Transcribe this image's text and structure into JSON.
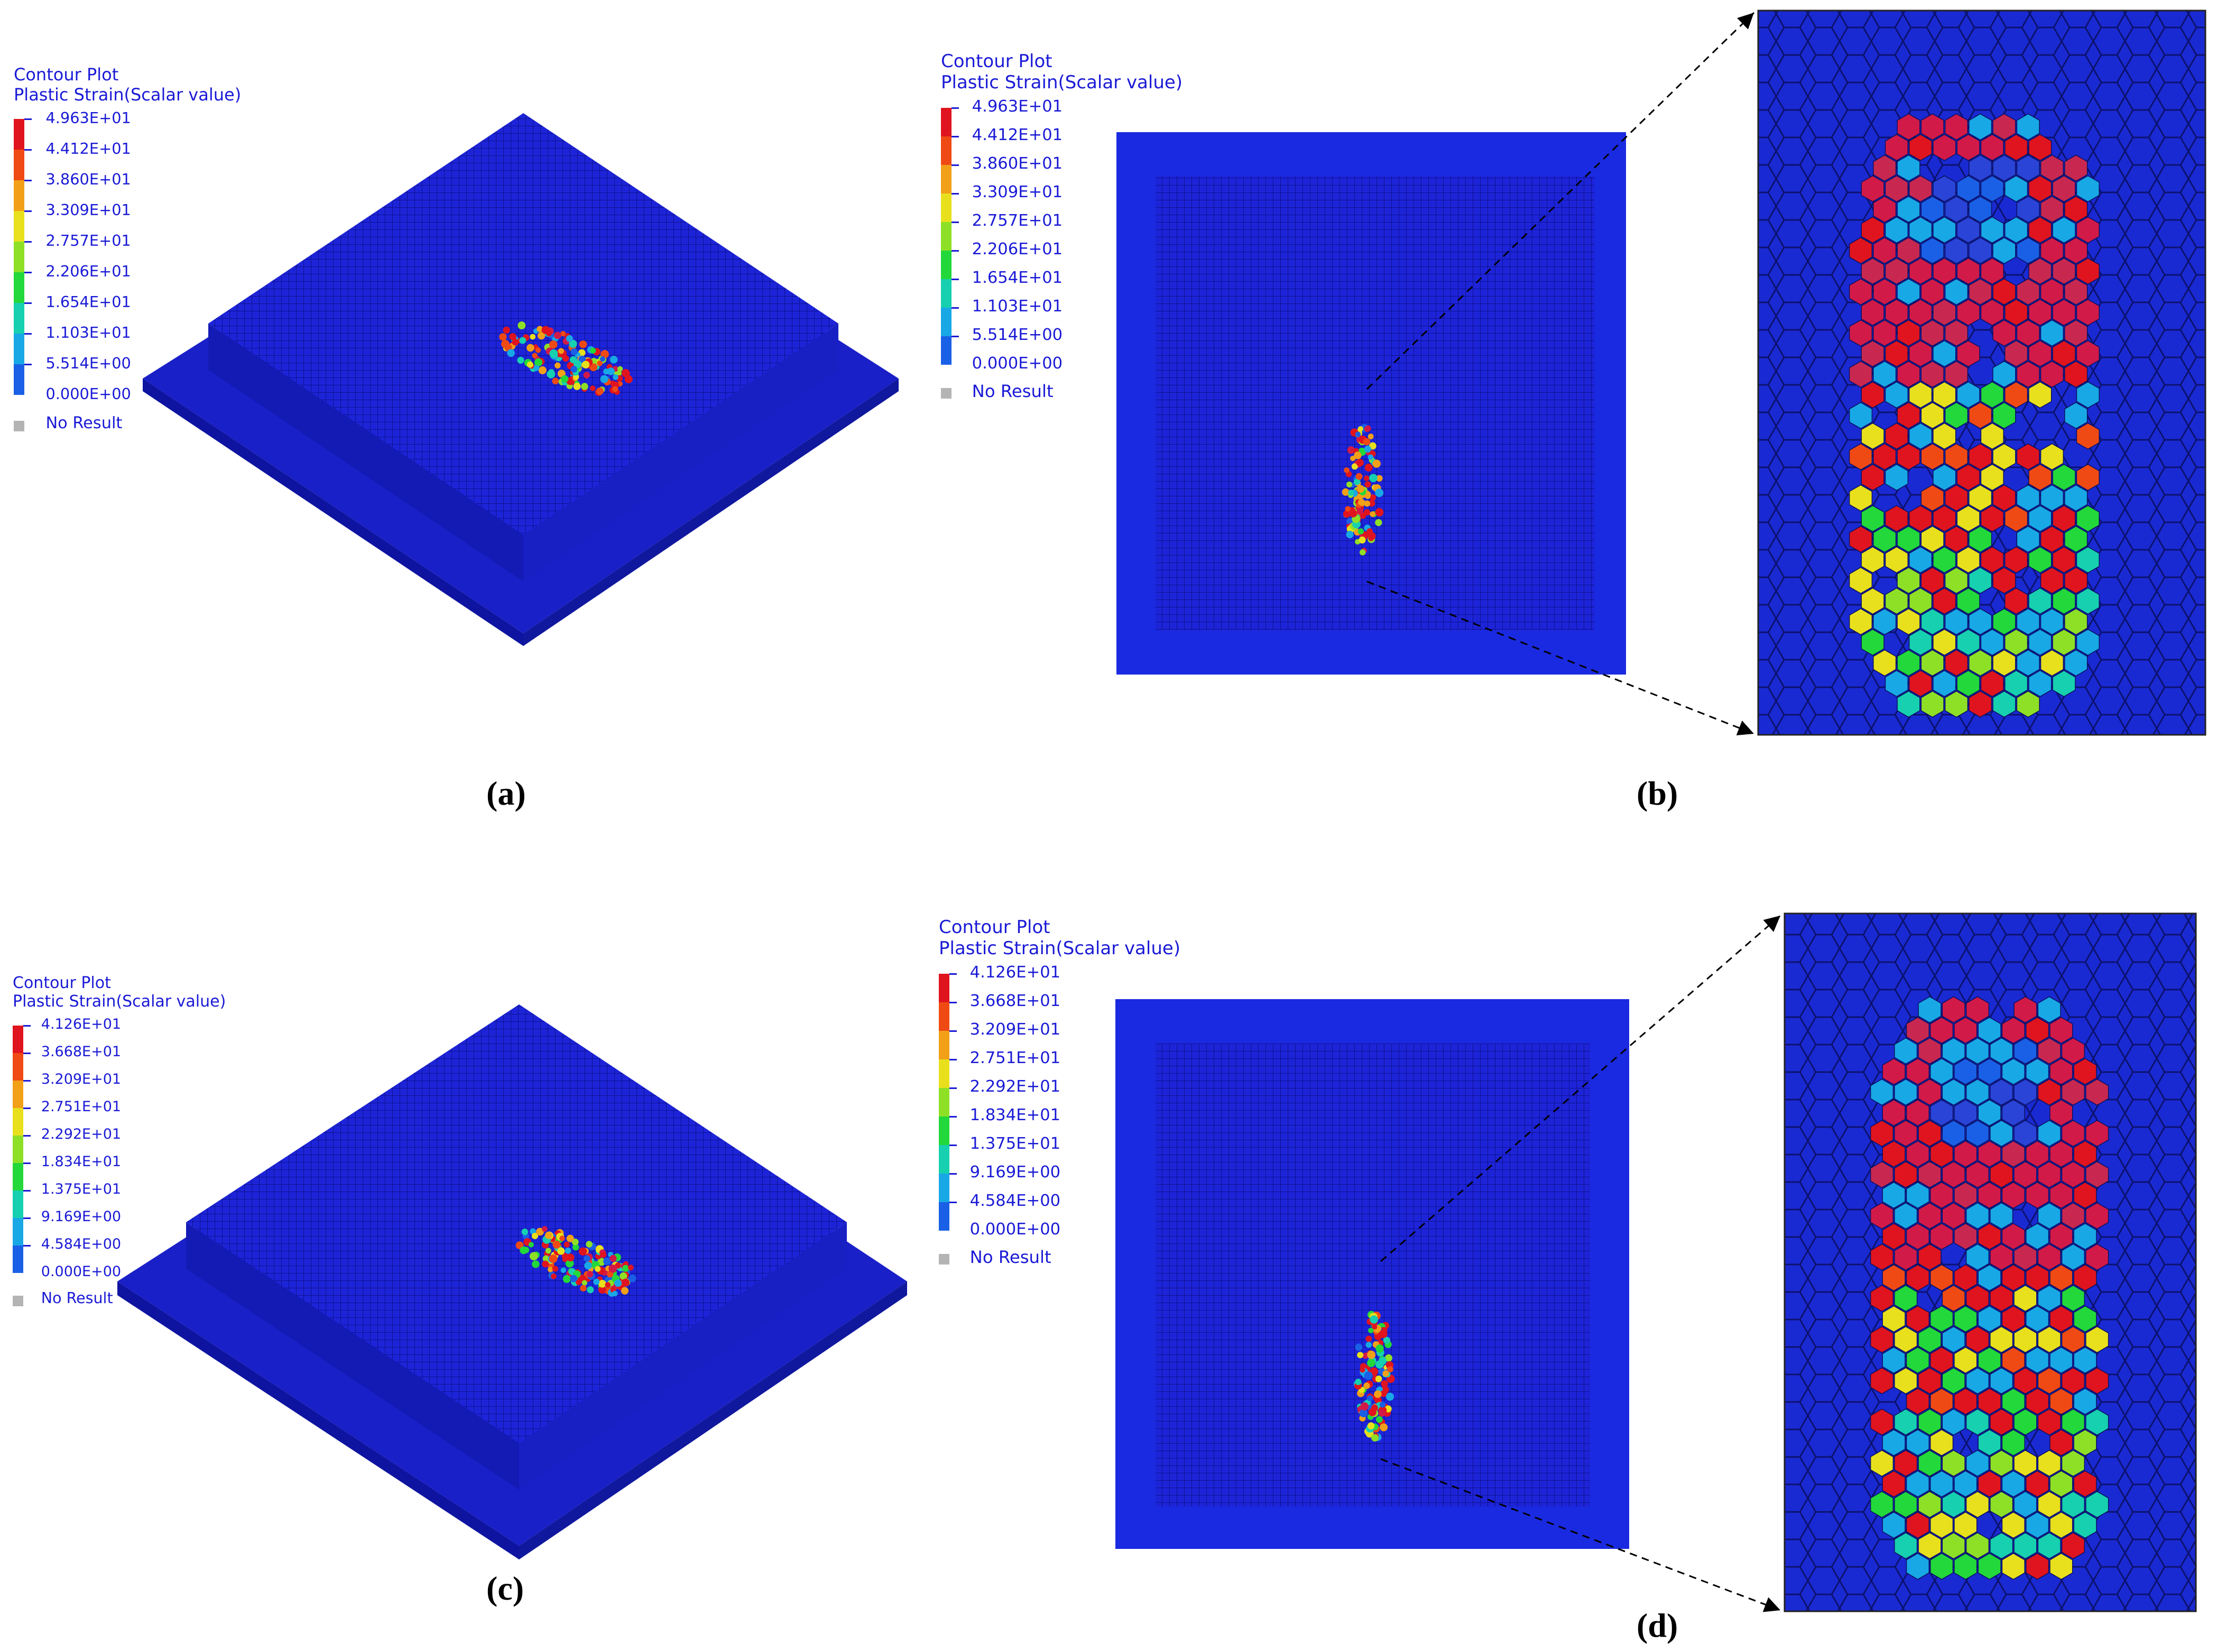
{
  "panels": [
    {
      "label": "(a)",
      "legend": {
        "title": "Contour Plot",
        "subtitle": "Plastic Strain(Scalar value)",
        "values": [
          "4.963E+01",
          "4.412E+01",
          "3.860E+01",
          "3.309E+01",
          "2.757E+01",
          "2.206E+01",
          "1.654E+01",
          "1.103E+01",
          "5.514E+00",
          "0.000E+00"
        ],
        "no_result": "No Result"
      }
    },
    {
      "label": "(b)",
      "legend": {
        "title": "Contour Plot",
        "subtitle": "Plastic Strain(Scalar value)",
        "values": [
          "4.963E+01",
          "4.412E+01",
          "3.860E+01",
          "3.309E+01",
          "2.757E+01",
          "2.206E+01",
          "1.654E+01",
          "1.103E+01",
          "5.514E+00",
          "0.000E+00"
        ],
        "no_result": "No Result"
      }
    },
    {
      "label": "(c)",
      "legend": {
        "title": "Contour Plot",
        "subtitle": "Plastic Strain(Scalar value)",
        "values": [
          "4.126E+01",
          "3.668E+01",
          "3.209E+01",
          "2.751E+01",
          "2.292E+01",
          "1.834E+01",
          "1.375E+01",
          "9.169E+00",
          "4.584E+00",
          "0.000E+00"
        ],
        "no_result": "No Result"
      }
    },
    {
      "label": "(d)",
      "legend": {
        "title": "Contour Plot",
        "subtitle": "Plastic Strain(Scalar value)",
        "values": [
          "4.126E+01",
          "3.668E+01",
          "3.209E+01",
          "2.751E+01",
          "2.292E+01",
          "1.834E+01",
          "1.375E+01",
          "9.169E+00",
          "4.584E+00",
          "0.000E+00"
        ],
        "no_result": "No Result"
      }
    }
  ],
  "colors": {
    "mesh_blue": "#1d24d8",
    "legend_text": "#1a1ad6",
    "scale": [
      "#e0141e",
      "#f04a14",
      "#f2a018",
      "#e8e01c",
      "#8ee026",
      "#22d83a",
      "#16d0b0",
      "#18a8e6",
      "#1a60e6",
      "#0a0aa0"
    ],
    "no_result": "#b4b4b4"
  }
}
